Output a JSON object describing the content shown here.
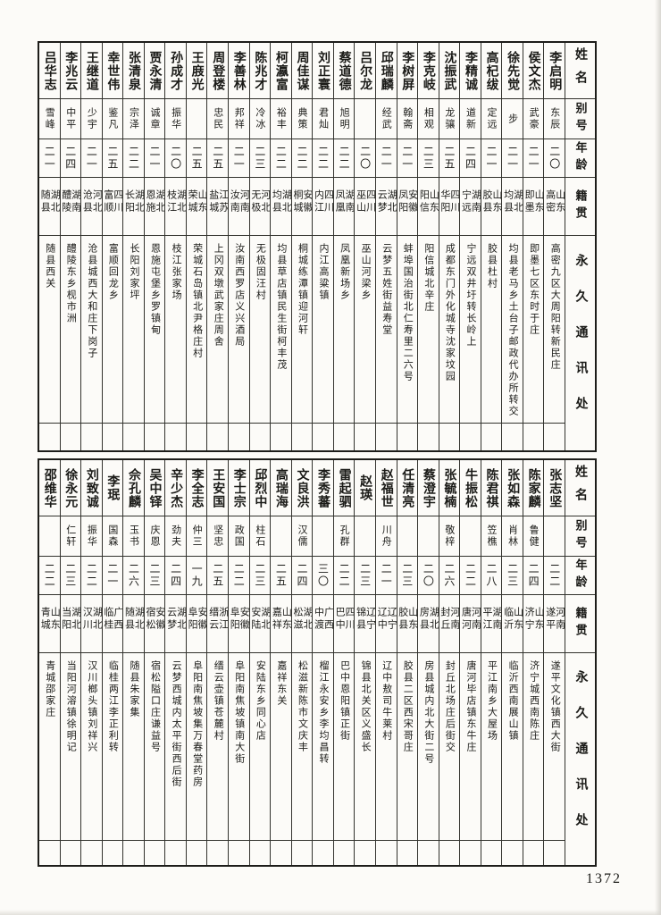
{
  "page": {
    "number": "1372"
  },
  "header_labels": {
    "name": "姓名",
    "alias": "别号",
    "age": "年龄",
    "native": "籍贯",
    "address": "永久通讯处"
  },
  "table1": {
    "people": [
      {
        "name": "李启明",
        "alias": "东辰",
        "age": "二〇",
        "native": "山东高密",
        "address": "高密九区大周阳转新民庄"
      },
      {
        "name": "侯文杰",
        "alias": "武豪",
        "age": "二一",
        "native": "山东即墨",
        "address": "即墨七区东时于庄"
      },
      {
        "name": "徐先觉",
        "alias": "步",
        "age": "二一",
        "native": "湖北均县",
        "address": "均县老马乡土台子邮政代办所转交"
      },
      {
        "name": "高杞绂",
        "alias": "定远",
        "age": "二一",
        "native": "山东胶县",
        "address": "胶县杜村"
      },
      {
        "name": "李精诚",
        "alias": "道新",
        "age": "二四",
        "native": "湖南宁远",
        "address": "宁远双井圩转长岭上"
      },
      {
        "name": "沈振武",
        "alias": "龙骧",
        "age": "二五",
        "native": "四川华阳",
        "address": "成都东门外化城寺沈家坟园"
      },
      {
        "name": "李克岐",
        "alias": "相观",
        "age": "二三",
        "native": "山东阳信",
        "address": "阳信城北辛庄"
      },
      {
        "name": "李树屏",
        "alias": "翰斋",
        "age": "二一",
        "native": "安徽凤阳",
        "address": "蚌埠国治街北仁寿里二六号"
      },
      {
        "name": "邱瑞麟",
        "alias": "经武",
        "age": "二一",
        "native": "湖北云梦",
        "address": "云梦五姓街益寿堂"
      },
      {
        "name": "吕尔龙",
        "alias": "",
        "age": "二〇",
        "native": "四川巫山",
        "address": "巫山河梁乡"
      },
      {
        "name": "蔡道德",
        "alias": "旭明",
        "age": "二二",
        "native": "湖南凤凰",
        "address": "凤凰新场乡"
      },
      {
        "name": "刘正寰",
        "alias": "君灿",
        "age": "二二",
        "native": "四川内江",
        "address": "内江高粱镇"
      },
      {
        "name": "周佳谋",
        "alias": "典策",
        "age": "二二",
        "native": "安徽桐城",
        "address": "桐城练潭镇迎河轩"
      },
      {
        "name": "柯瀛富",
        "alias": "裕丰",
        "age": "二二",
        "native": "湖北均县",
        "address": "均县草店镇民生街柯丰茂"
      },
      {
        "name": "陈兆才",
        "alias": "冷冰",
        "age": "二三",
        "native": "河北无极",
        "address": "无极固汪村"
      },
      {
        "name": "李善林",
        "alias": "邦祥",
        "age": "二一",
        "native": "河南汝南",
        "address": "汝南西罗店义兴酒局"
      },
      {
        "name": "周登楼",
        "alias": "忠民",
        "age": "二五",
        "native": "江苏盐城",
        "address": "上冈双墩武家庄周舍"
      },
      {
        "name": "王庪光",
        "alias": "",
        "age": "二五",
        "native": "山东荣城",
        "address": "荣城石岛镇北尹格庄村"
      },
      {
        "name": "孙成才",
        "alias": "振华",
        "age": "二〇",
        "native": "湖北枝江",
        "address": "枝江张家场"
      },
      {
        "name": "贾永清",
        "alias": "诚章",
        "age": "二一",
        "native": "湖北恩施",
        "address": "恩施屯堡乡罗镇甸"
      },
      {
        "name": "张清泉",
        "alias": "宗泽",
        "age": "二二",
        "native": "湖北长阳",
        "address": "长阳刘家坪"
      },
      {
        "name": "幸世伟",
        "alias": "鉴凡",
        "age": "二五",
        "native": "四川富顺",
        "address": "富顺回龙乡"
      },
      {
        "name": "王继道",
        "alias": "少宇",
        "age": "二一",
        "native": "河北沧县",
        "address": "沧县城西大和庄下岗子"
      },
      {
        "name": "李兆云",
        "alias": "中平",
        "age": "二四",
        "native": "湖南醴陵",
        "address": "醴陵东乡枧市洲"
      },
      {
        "name": "吕华志",
        "alias": "雪峰",
        "age": "二一",
        "native": "湖北随县",
        "address": "随县西关"
      }
    ]
  },
  "table2": {
    "people": [
      {
        "name": "张志坚",
        "alias": "",
        "age": "二二",
        "native": "河南遂平",
        "address": "遂平文化镇西大街"
      },
      {
        "name": "陈家麟",
        "alias": "鲁健",
        "age": "二四",
        "native": "山东济宁",
        "address": "济宁城西南陈庄"
      },
      {
        "name": "张如森",
        "alias": "肖林",
        "age": "二三",
        "native": "山东临沂",
        "address": "临沂西南展山镇"
      },
      {
        "name": "陈君祺",
        "alias": "笠樵",
        "age": "二八",
        "native": "湖南平江",
        "address": "平江南乡大屋场"
      },
      {
        "name": "牛振松",
        "alias": "",
        "age": "二二",
        "native": "河南唐河",
        "address": "唐河毕店镇东牛庄"
      },
      {
        "name": "张毓楠",
        "alias": "敬梓",
        "age": "二六",
        "native": "河南封丘",
        "address": "封丘北场庄后街交"
      },
      {
        "name": "蔡澄宇",
        "alias": "",
        "age": "二〇",
        "native": "湖北房县",
        "address": "房县城内北大街二号"
      },
      {
        "name": "任清亮",
        "alias": "",
        "age": "二三",
        "native": "山东胶县",
        "address": "胶县二区西宋哥庄"
      },
      {
        "name": "赵福世",
        "alias": "川舟",
        "age": "二一",
        "native": "辽宁辽中",
        "address": "辽中敖司牛莱村"
      },
      {
        "name": "赵瑛",
        "alias": "",
        "age": "二三",
        "native": "辽宁锦县",
        "address": "锦县北关区义盛长"
      },
      {
        "name": "雷起驷",
        "alias": "孔群",
        "age": "二二",
        "native": "四川巴中",
        "address": "巴中恩阳镇正街"
      },
      {
        "name": "李秀蕃",
        "alias": "",
        "age": "三〇",
        "native": "广西中渡",
        "address": "榴江永安乡李均昌转"
      },
      {
        "name": "文良洪",
        "alias": "汉儒",
        "age": "二四",
        "native": "湖北松滋",
        "address": "松滋新陈市文庆丰"
      },
      {
        "name": "高瑞海",
        "alias": "",
        "age": "二五",
        "native": "山东嘉祥",
        "address": "嘉祥东关"
      },
      {
        "name": "邱烈中",
        "alias": "柱石",
        "age": "二三",
        "native": "湖北安陆",
        "address": "安陆东乡同心店"
      },
      {
        "name": "李士宗",
        "alias": "政国",
        "age": "二二",
        "native": "安徽阜阳",
        "address": "阜阳南焦坡镇南大街"
      },
      {
        "name": "王安国",
        "alias": "坚忠",
        "age": "二五",
        "native": "浙江缙云",
        "address": "缙云壶镇苍麓村"
      },
      {
        "name": "李全志",
        "alias": "仲三",
        "age": "一九",
        "native": "安徽阜阳",
        "address": "阜阳南焦坡集万春堂药房"
      },
      {
        "name": "辛少杰",
        "alias": "劲夫",
        "age": "二四",
        "native": "湖北云梦",
        "address": "云梦西城内太平街西后街"
      },
      {
        "name": "吴中铎",
        "alias": "庆恩",
        "age": "二三",
        "native": "安徽宿松",
        "address": "宿松隘口庄谦益号"
      },
      {
        "name": "佘孔麟",
        "alias": "玉书",
        "age": "二六",
        "native": "湖北随县",
        "address": "随县朱家集"
      },
      {
        "name": "李珉",
        "alias": "国森",
        "age": "二一",
        "native": "广西临桂",
        "address": "临桂两江李正利转"
      },
      {
        "name": "刘致诚",
        "alias": "振华",
        "age": "二二",
        "native": "湖北汉川",
        "address": "汉川榔头镇刘祥兴"
      },
      {
        "name": "徐永元",
        "alias": "仁轩",
        "age": "二三",
        "native": "湖北当阳",
        "address": "当阳河溶镇徐明记"
      },
      {
        "name": "邵维华",
        "alias": "",
        "age": "二二",
        "native": "山东青城",
        "address": "青城邵家庄"
      }
    ]
  }
}
